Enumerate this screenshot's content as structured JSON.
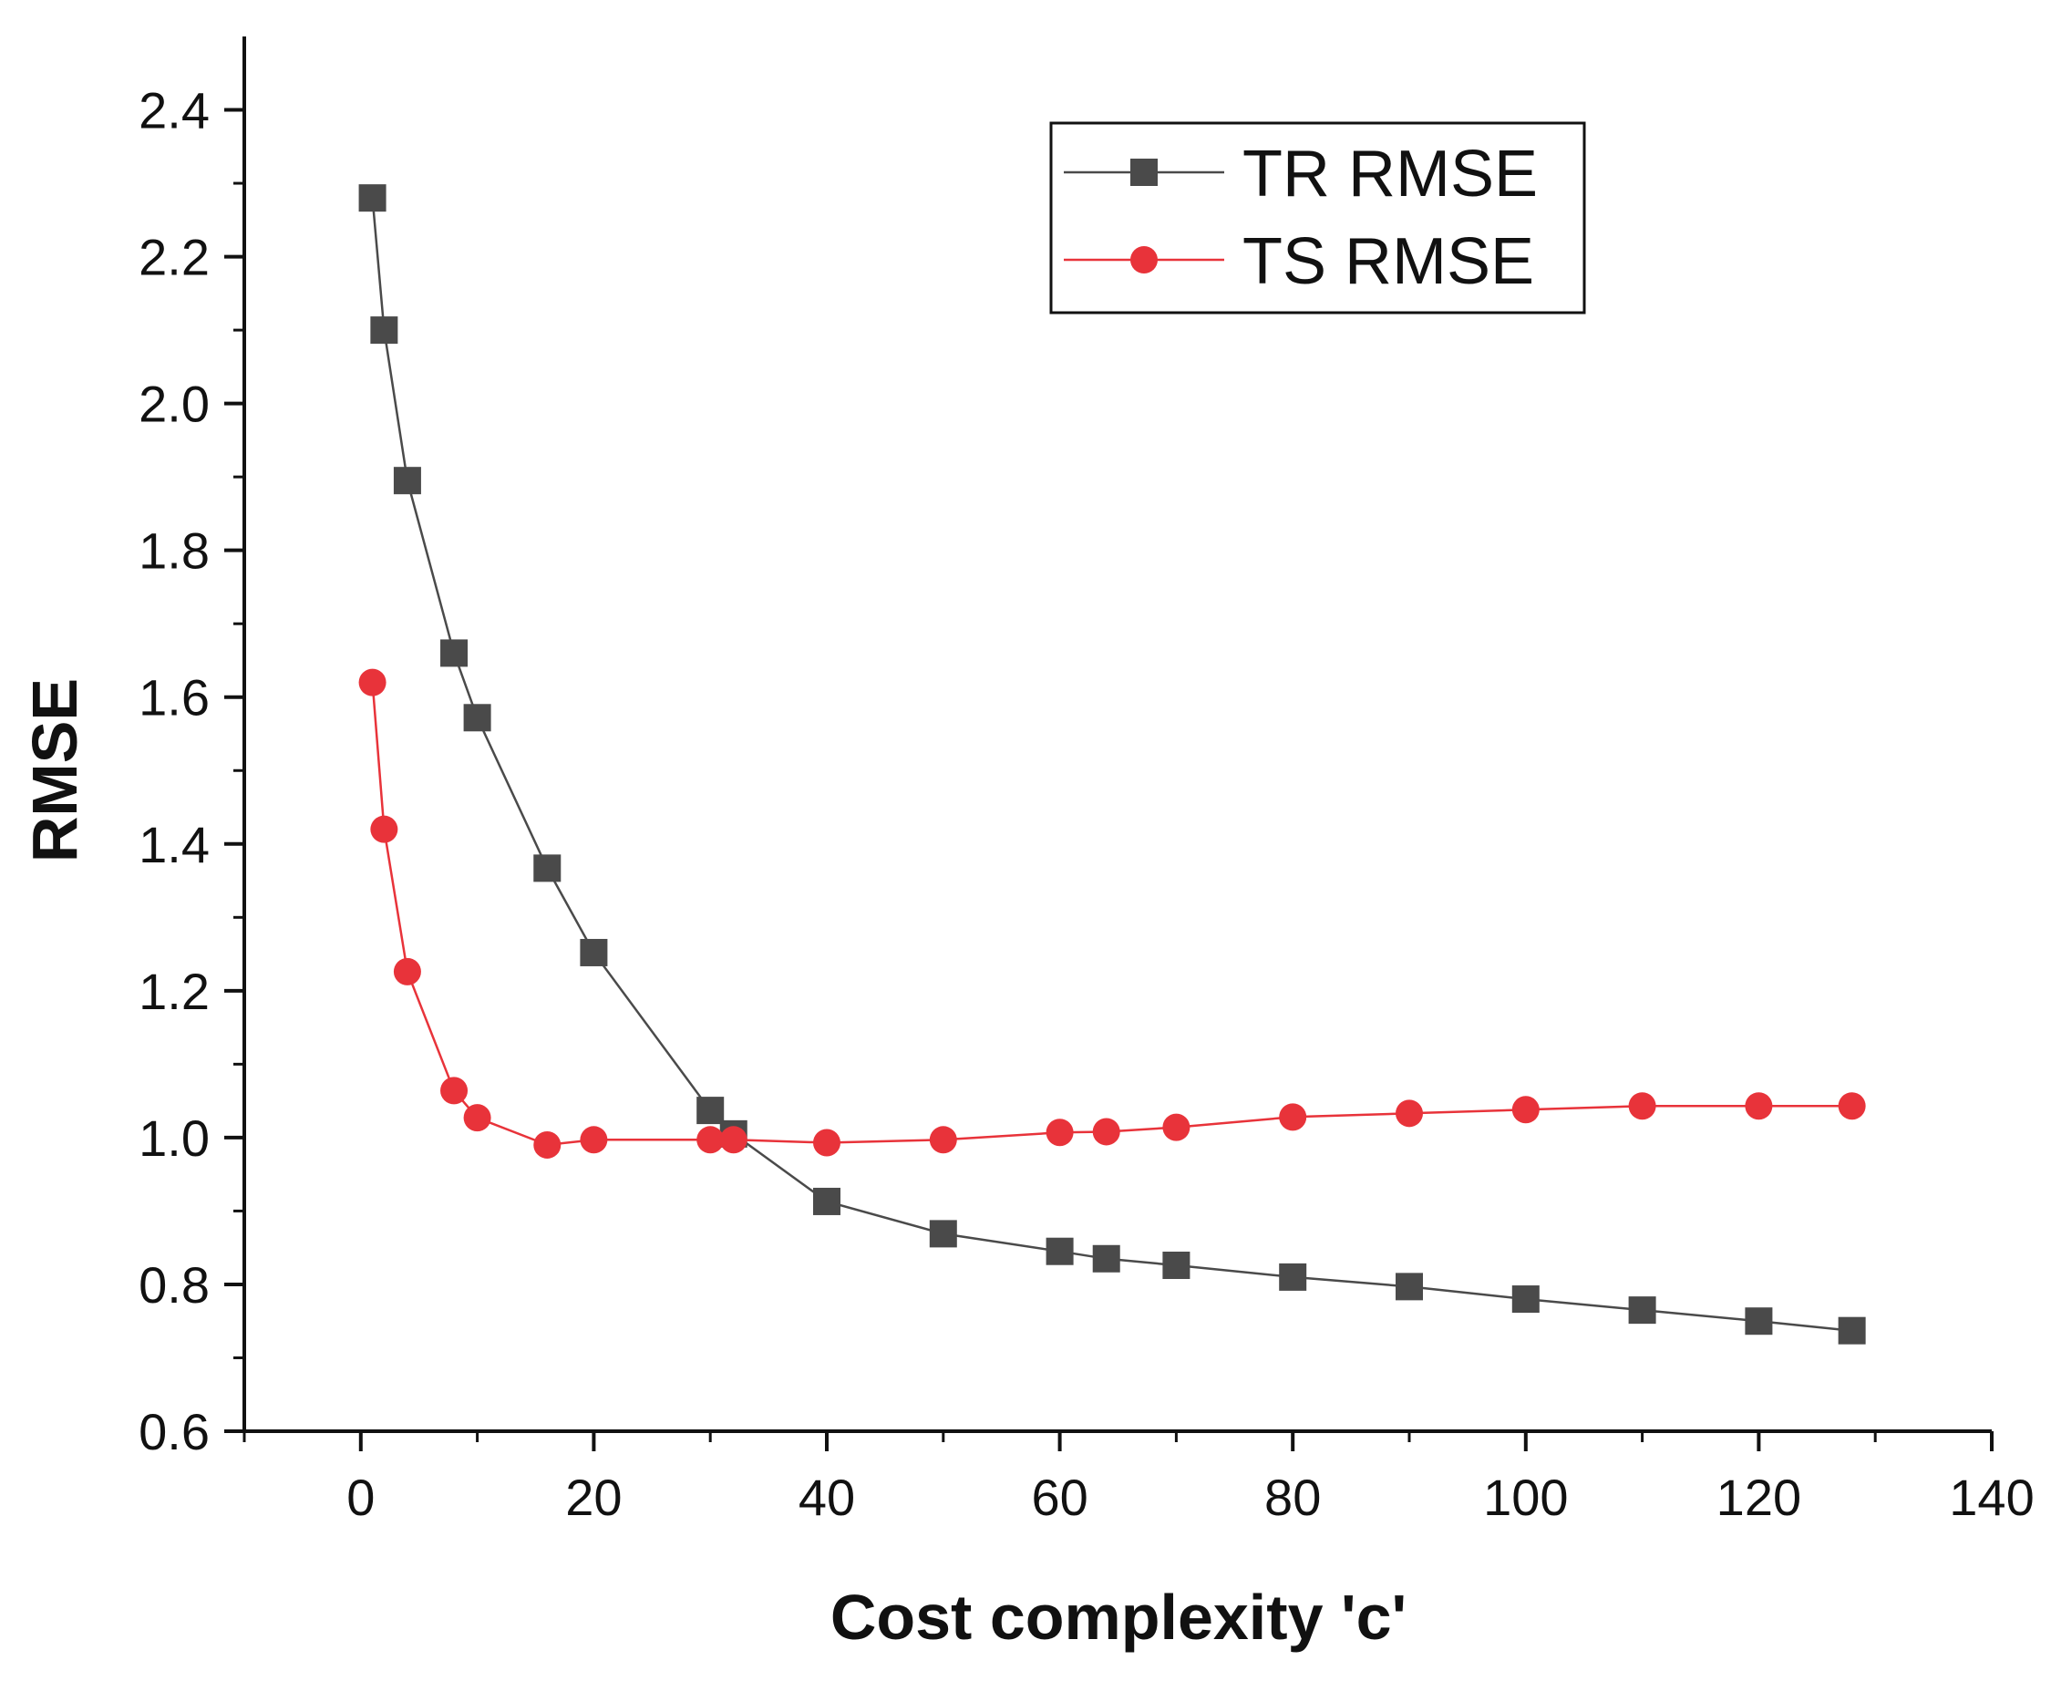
{
  "chart_data": {
    "type": "line",
    "title": "",
    "xlabel": "Cost complexity 'c'",
    "ylabel": "RMSE",
    "xlim": [
      -10,
      140
    ],
    "ylim": [
      0.6,
      2.5
    ],
    "xticks": [
      0,
      20,
      40,
      60,
      80,
      100,
      120,
      140
    ],
    "yticks": [
      0.6,
      0.8,
      1.0,
      1.2,
      1.4,
      1.6,
      1.8,
      2.0,
      2.2,
      2.4
    ],
    "x_tick_labels": [
      "0",
      "20",
      "40",
      "60",
      "80",
      "100",
      "120",
      "140"
    ],
    "y_tick_labels": [
      "0.6",
      "0.8",
      "1.0",
      "1.2",
      "1.4",
      "1.6",
      "1.8",
      "2.0",
      "2.2",
      "2.4"
    ],
    "grid": false,
    "legend_position": "top-right",
    "series": [
      {
        "name": "TR RMSE",
        "color": "#4a4a4a",
        "marker": "square",
        "x": [
          1,
          2,
          4,
          8,
          10,
          16,
          20,
          30,
          32,
          40,
          50,
          60,
          64,
          70,
          80,
          90,
          100,
          110,
          120,
          128
        ],
        "y": [
          2.28,
          2.1,
          1.895,
          1.66,
          1.572,
          1.367,
          1.252,
          1.037,
          1.005,
          0.913,
          0.869,
          0.845,
          0.835,
          0.826,
          0.81,
          0.797,
          0.78,
          0.765,
          0.75,
          0.737
        ]
      },
      {
        "name": "TS RMSE",
        "color": "#e8333a",
        "marker": "circle",
        "x": [
          1,
          2,
          4,
          8,
          10,
          16,
          20,
          30,
          32,
          40,
          50,
          60,
          64,
          70,
          80,
          90,
          100,
          110,
          120,
          128
        ],
        "y": [
          1.62,
          1.42,
          1.226,
          1.064,
          1.027,
          0.99,
          0.997,
          0.997,
          0.997,
          0.993,
          0.997,
          1.007,
          1.008,
          1.014,
          1.028,
          1.033,
          1.038,
          1.043,
          1.043,
          1.043
        ]
      }
    ]
  }
}
